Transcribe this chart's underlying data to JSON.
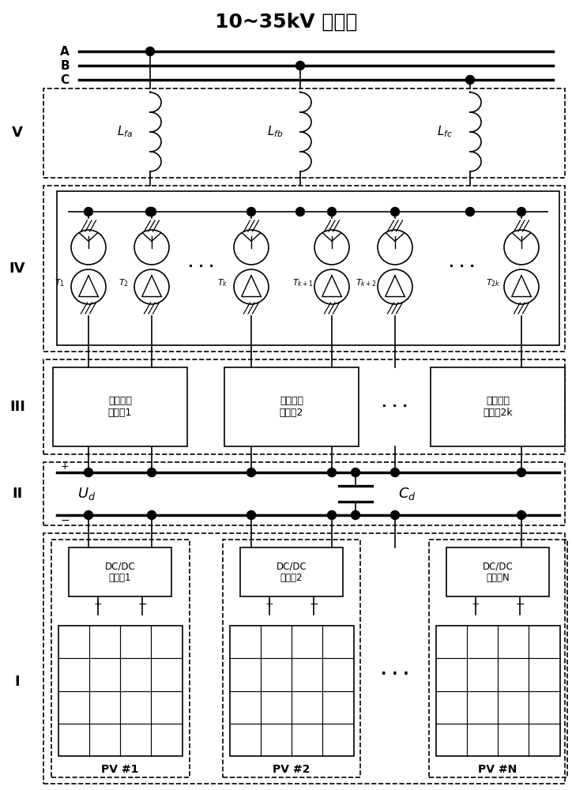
{
  "title": "10~35kV 配电网",
  "fig_width": 7.24,
  "fig_height": 10.0,
  "bg_color": "white",
  "label_V": "V",
  "label_IV": "IV",
  "label_III": "III",
  "label_II": "II",
  "label_I": "I",
  "inv1": "三相方波\n逆变剘1",
  "inv2": "三相方波\n逆变剘2",
  "inv2k": "三相方波\n逆变剘2k",
  "dc1": "DC/DC\n变换剘1",
  "dc2": "DC/DC\n变换剘2",
  "dcN": "DC/DC\n变换器N",
  "pv1": "PV #1",
  "pv2": "PV #2",
  "pvN": "PV #N"
}
